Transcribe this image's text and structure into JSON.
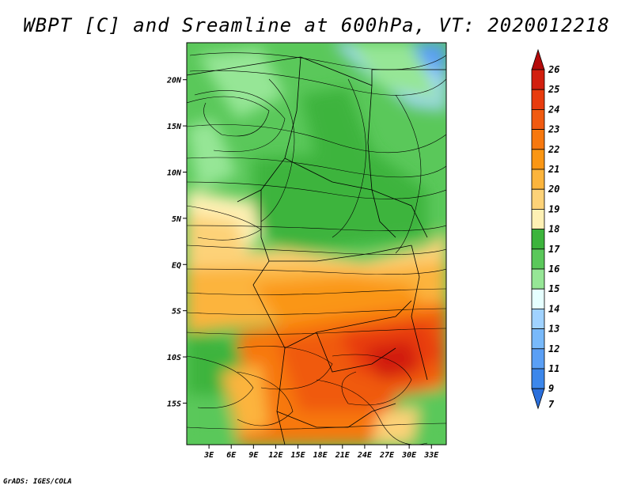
{
  "chart_data": {
    "type": "heatmap",
    "title": "WBPT [C] and Sreamline at 600hPa, VT: 2020012218",
    "variable": "Wet-bulb potential temperature",
    "units": "C",
    "level": "600hPa",
    "valid_time": "2020012218",
    "overlay": "streamlines",
    "x_axis": {
      "range": [
        0,
        35
      ],
      "ticks": [
        3,
        6,
        9,
        12,
        15,
        18,
        21,
        24,
        27,
        30,
        33
      ],
      "tick_labels": [
        "3E",
        "6E",
        "9E",
        "12E",
        "15E",
        "18E",
        "21E",
        "24E",
        "27E",
        "30E",
        "33E"
      ]
    },
    "y_axis": {
      "range": [
        -19.5,
        24
      ],
      "ticks": [
        20,
        15,
        10,
        5,
        0,
        -5,
        -10,
        -15
      ],
      "tick_labels": [
        "20N",
        "15N",
        "10N",
        "5N",
        "EQ",
        "5S",
        "10S",
        "15S"
      ]
    },
    "colorbar": {
      "levels": [
        "26",
        "25",
        "24",
        "23",
        "22",
        "21",
        "20",
        "19",
        "18",
        "17",
        "16",
        "15",
        "14",
        "13",
        "12",
        "11",
        "9",
        "7"
      ],
      "colors": [
        "#b40a0a",
        "#d21f0f",
        "#e83c0e",
        "#f05a10",
        "#f7780e",
        "#fa9614",
        "#fcb43c",
        "#fdd278",
        "#fef0b4",
        "#3cb43c",
        "#5ac85a",
        "#96e696",
        "#e6ffff",
        "#a0d2ff",
        "#78b9fa",
        "#5a9ff5",
        "#3c87eb",
        "#2a6fdc"
      ]
    }
  },
  "credit": "GrADS: IGES/COLA"
}
